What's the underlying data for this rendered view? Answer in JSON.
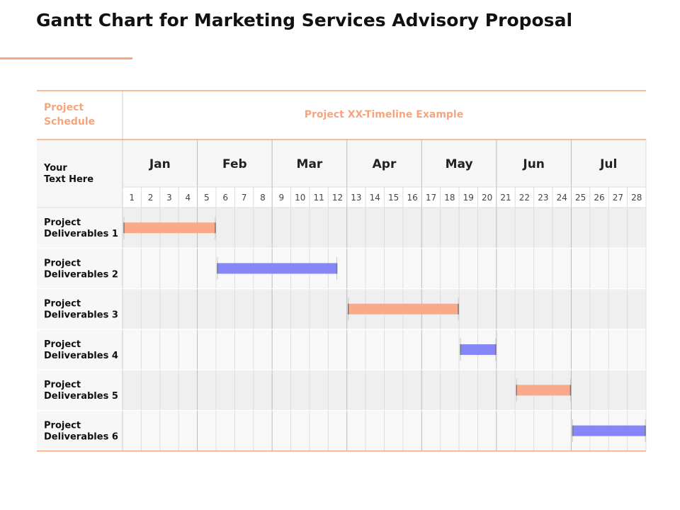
{
  "title": "Gantt Chart for Marketing Services Advisory Proposal",
  "colors": {
    "accent_orange": "#F7A77F",
    "header_orange": "#F4A57C",
    "bar_orange": "#FAA98A",
    "bar_purple": "#8686F8",
    "row_shaded": "#EFEFEF",
    "row_light": "#F8F8F8",
    "grid_line": "#DDDDDD",
    "month_divider": "#BBBBBB"
  },
  "table": {
    "schedule_header": [
      "Project",
      "Schedule"
    ],
    "timeline_header": "Project XX-Timeline Example",
    "row_header": [
      "Your",
      "Text Here"
    ]
  },
  "chart_data": {
    "type": "gantt",
    "months": [
      "Jan",
      "Feb",
      "Mar",
      "Apr",
      "May",
      "Jun",
      "Jul"
    ],
    "weeks": [
      1,
      2,
      3,
      4,
      5,
      6,
      7,
      8,
      9,
      10,
      11,
      12,
      13,
      14,
      15,
      16,
      17,
      18,
      19,
      20,
      21,
      22,
      23,
      24,
      25,
      26,
      27,
      28
    ],
    "tasks": [
      {
        "label": [
          "Project",
          "Deliverables 1"
        ],
        "start_week": 1,
        "end_week": 5,
        "color": "#FAA98A"
      },
      {
        "label": [
          "Project",
          "Deliverables 2"
        ],
        "start_week": 6,
        "end_week": 11.5,
        "color": "#8686F8"
      },
      {
        "label": [
          "Project",
          "Deliverables 3"
        ],
        "start_week": 13,
        "end_week": 18,
        "color": "#FAA98A"
      },
      {
        "label": [
          "Project",
          "Deliverables 4"
        ],
        "start_week": 19,
        "end_week": 20,
        "color": "#8686F8"
      },
      {
        "label": [
          "Project",
          "Deliverables 5"
        ],
        "start_week": 22,
        "end_week": 24,
        "color": "#FAA98A"
      },
      {
        "label": [
          "Project",
          "Deliverables 6"
        ],
        "start_week": 25,
        "end_week": 28,
        "color": "#8686F8"
      }
    ]
  }
}
